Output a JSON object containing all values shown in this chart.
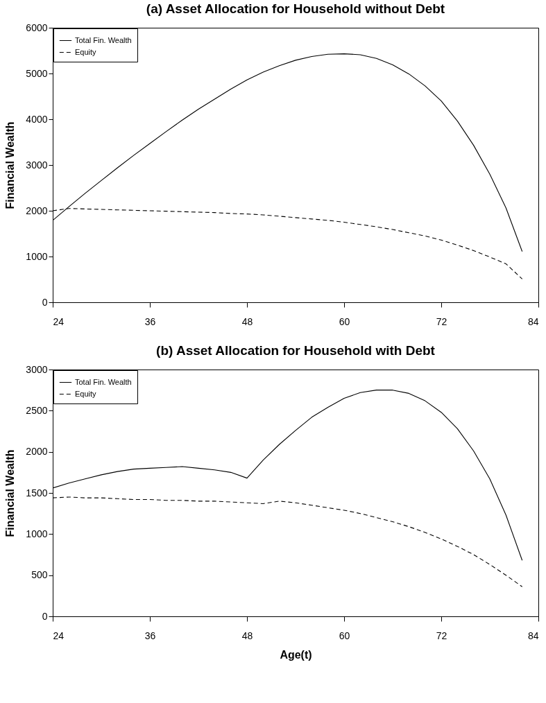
{
  "chart_data": [
    {
      "type": "line",
      "title": "(a) Asset Allocation for Household without Debt",
      "ylabel": "Financial Wealth",
      "legend": "top left",
      "xlim": [
        24,
        84
      ],
      "xticks": [
        24,
        36,
        48,
        60,
        72,
        84
      ],
      "ylim": [
        0,
        6000
      ],
      "yticks": [
        0,
        1000,
        2000,
        3000,
        4000,
        5000,
        6000
      ],
      "x": [
        24,
        26,
        28,
        30,
        32,
        34,
        36,
        38,
        40,
        42,
        44,
        46,
        48,
        50,
        52,
        54,
        56,
        58,
        60,
        62,
        64,
        66,
        68,
        70,
        72,
        74,
        76,
        78,
        80,
        82
      ],
      "series": [
        {
          "name": "Total Fin. Wealth",
          "color": "#000000",
          "line_style": "solid",
          "values": [
            1790,
            2090,
            2380,
            2660,
            2940,
            3210,
            3470,
            3730,
            3980,
            4220,
            4440,
            4660,
            4860,
            5030,
            5170,
            5290,
            5370,
            5420,
            5430,
            5410,
            5330,
            5190,
            4990,
            4730,
            4400,
            3960,
            3430,
            2800,
            2060,
            1110
          ]
        },
        {
          "name": "Equity",
          "color": "#000000",
          "line_style": "dashed",
          "values": [
            2000,
            2050,
            2040,
            2030,
            2020,
            2010,
            2000,
            1990,
            1980,
            1970,
            1960,
            1940,
            1930,
            1910,
            1880,
            1850,
            1820,
            1790,
            1750,
            1700,
            1650,
            1590,
            1520,
            1450,
            1360,
            1250,
            1130,
            990,
            840,
            510
          ]
        }
      ]
    },
    {
      "type": "line",
      "title": "(b) Asset Allocation for Household with Debt",
      "xlabel": "Age(t)",
      "ylabel": "Financial Wealth",
      "legend": "top left",
      "xlim": [
        24,
        84
      ],
      "xticks": [
        24,
        36,
        48,
        60,
        72,
        84
      ],
      "ylim": [
        0,
        3000
      ],
      "yticks": [
        0,
        500,
        1000,
        1500,
        2000,
        2500,
        3000
      ],
      "x": [
        24,
        26,
        28,
        30,
        32,
        34,
        36,
        38,
        40,
        42,
        44,
        46,
        48,
        50,
        52,
        54,
        56,
        58,
        60,
        62,
        64,
        66,
        68,
        70,
        72,
        74,
        76,
        78,
        80,
        82
      ],
      "series": [
        {
          "name": "Total Fin. Wealth",
          "color": "#000000",
          "line_style": "solid",
          "values": [
            1560,
            1620,
            1670,
            1720,
            1760,
            1790,
            1800,
            1810,
            1820,
            1800,
            1780,
            1750,
            1680,
            1900,
            2090,
            2260,
            2420,
            2540,
            2650,
            2720,
            2750,
            2750,
            2710,
            2620,
            2480,
            2280,
            2010,
            1670,
            1230,
            680
          ]
        },
        {
          "name": "Equity",
          "color": "#000000",
          "line_style": "dashed",
          "values": [
            1440,
            1450,
            1440,
            1440,
            1430,
            1420,
            1420,
            1410,
            1410,
            1400,
            1400,
            1390,
            1380,
            1370,
            1400,
            1380,
            1350,
            1320,
            1290,
            1250,
            1200,
            1150,
            1090,
            1020,
            940,
            850,
            750,
            630,
            500,
            360
          ]
        }
      ]
    }
  ]
}
